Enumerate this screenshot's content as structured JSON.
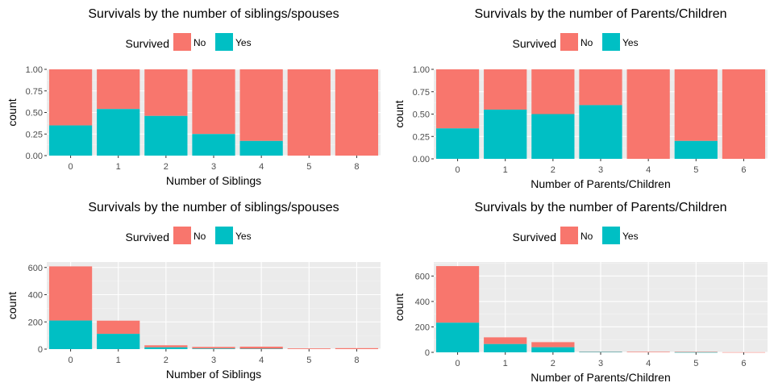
{
  "colors": {
    "no": "#F8766D",
    "yes": "#00BFC4",
    "panel_bg": "#EBEBEB",
    "grid_major": "#FFFFFF",
    "grid_minor": "#F5F5F5"
  },
  "chart_data": [
    {
      "type": "bar",
      "stacked": true,
      "title": "Survivals by the number of siblings/spouses",
      "xlabel": "Number of Siblings",
      "ylabel": "count",
      "legend": {
        "title": "Survived",
        "position": "top",
        "entries": [
          "No",
          "Yes"
        ]
      },
      "categories": [
        "0",
        "1",
        "2",
        "3",
        "4",
        "5",
        "8"
      ],
      "ylim": [
        0,
        1
      ],
      "yticks": [
        "0.00",
        "0.25",
        "0.50",
        "0.75",
        "1.00"
      ],
      "series": [
        {
          "name": "Yes",
          "values": [
            0.35,
            0.54,
            0.46,
            0.25,
            0.17,
            0,
            0
          ]
        },
        {
          "name": "No",
          "values": [
            0.65,
            0.46,
            0.54,
            0.75,
            0.83,
            1,
            1
          ]
        }
      ]
    },
    {
      "type": "bar",
      "stacked": true,
      "title": "Survivals by the number of Parents/Children",
      "xlabel": "Number of Parents/Children",
      "ylabel": "count",
      "legend": {
        "title": "Survived",
        "position": "top",
        "entries": [
          "No",
          "Yes"
        ]
      },
      "categories": [
        "0",
        "1",
        "2",
        "3",
        "4",
        "5",
        "6"
      ],
      "ylim": [
        0,
        1
      ],
      "yticks": [
        "0.00",
        "0.25",
        "0.50",
        "0.75",
        "1.00"
      ],
      "series": [
        {
          "name": "Yes",
          "values": [
            0.34,
            0.55,
            0.5,
            0.6,
            0,
            0.2,
            0
          ]
        },
        {
          "name": "No",
          "values": [
            0.66,
            0.45,
            0.5,
            0.4,
            1,
            0.8,
            1
          ]
        }
      ]
    },
    {
      "type": "bar",
      "stacked": true,
      "title": "Survivals by the number of siblings/spouses",
      "xlabel": "Number of Siblings",
      "ylabel": "count",
      "legend": {
        "title": "Survived",
        "position": "top",
        "entries": [
          "No",
          "Yes"
        ]
      },
      "categories": [
        "0",
        "1",
        "2",
        "3",
        "4",
        "5",
        "8"
      ],
      "ylim": [
        0,
        640
      ],
      "yticks": [
        "0",
        "200",
        "400",
        "600"
      ],
      "series": [
        {
          "name": "Yes",
          "values": [
            210,
            112,
            13,
            4,
            3,
            0,
            0
          ]
        },
        {
          "name": "No",
          "values": [
            398,
            97,
            15,
            12,
            15,
            5,
            7
          ]
        }
      ]
    },
    {
      "type": "bar",
      "stacked": true,
      "title": "Survivals by the number of Parents/Children",
      "xlabel": "Number of Parents/Children",
      "ylabel": "count",
      "legend": {
        "title": "Survived",
        "position": "top",
        "entries": [
          "No",
          "Yes"
        ]
      },
      "categories": [
        "0",
        "1",
        "2",
        "3",
        "4",
        "5",
        "6"
      ],
      "ylim": [
        0,
        710
      ],
      "yticks": [
        "0",
        "200",
        "400",
        "600"
      ],
      "series": [
        {
          "name": "Yes",
          "values": [
            233,
            65,
            40,
            3,
            0,
            1,
            0
          ]
        },
        {
          "name": "No",
          "values": [
            445,
            53,
            40,
            2,
            4,
            4,
            1
          ]
        }
      ]
    }
  ]
}
